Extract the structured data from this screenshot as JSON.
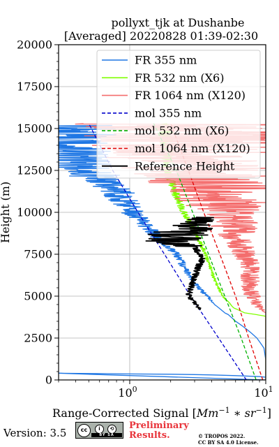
{
  "chart_data": {
    "type": "line",
    "title": "pollyxt_tjk at Dushanbe",
    "subtitle": "[Averaged] 20220828 01:39-02:30",
    "xlabel_prefix": "Range-Corrected Signal [",
    "xlabel_math": "Mm",
    "xlabel_sup1": "−1",
    "xlabel_mid": " ∗ ",
    "xlabel_math2": "sr",
    "xlabel_sup2": "−1",
    "xlabel_suffix": "]",
    "ylabel": "Height (m)",
    "xscale": "log",
    "xlim": [
      0.3,
      10
    ],
    "ylim": [
      0,
      20000
    ],
    "xticks": [
      {
        "value": 1,
        "base": "10",
        "exp": "0"
      },
      {
        "value": 10,
        "base": "10",
        "exp": "1"
      }
    ],
    "yticks": [
      0,
      2500,
      5000,
      7500,
      10000,
      12500,
      15000,
      17500,
      20000
    ],
    "grid": true,
    "legend_position": "top-right",
    "series": [
      {
        "name": "FR 355 nm",
        "color": "#1f77e4",
        "style": "solid",
        "points": [
          [
            12,
            100
          ],
          [
            9,
            200
          ],
          [
            6,
            260
          ],
          [
            4,
            300
          ],
          [
            3,
            320
          ],
          [
            2,
            340
          ],
          [
            1,
            360
          ],
          [
            0.6,
            380
          ],
          [
            0.3,
            400
          ]
        ],
        "profile": [
          [
            0,
            10,
            1
          ],
          [
            1200,
            10,
            1
          ],
          [
            1900,
            9.7,
            1
          ],
          [
            2500,
            8.6,
            1
          ],
          [
            3000,
            7.3,
            1
          ],
          [
            3500,
            6.0,
            1
          ],
          [
            3900,
            5.3,
            1
          ],
          [
            4000,
            5.0,
            1
          ],
          [
            4500,
            4.2,
            1
          ],
          [
            5000,
            3.7,
            1.04
          ],
          [
            5500,
            3.2,
            1.05
          ],
          [
            6000,
            2.9,
            1.05
          ],
          [
            6500,
            2.6,
            1.06
          ],
          [
            7000,
            2.4,
            1.07
          ],
          [
            7500,
            2.2,
            1.07
          ],
          [
            8000,
            1.9,
            1.09
          ],
          [
            8500,
            1.6,
            1.12
          ],
          [
            9000,
            1.4,
            1.15
          ],
          [
            9500,
            1.2,
            1.18
          ],
          [
            10000,
            1.05,
            1.22
          ],
          [
            10500,
            0.95,
            1.27
          ],
          [
            11000,
            0.85,
            1.32
          ],
          [
            11500,
            0.75,
            1.38
          ],
          [
            12000,
            0.6,
            1.48
          ],
          [
            12500,
            0.45,
            1.7
          ],
          [
            13000,
            0.38,
            1.9
          ],
          [
            13500,
            0.35,
            2.1
          ],
          [
            14000,
            0.33,
            2.3
          ],
          [
            14500,
            0.32,
            2.6
          ],
          [
            15200,
            0.3,
            3
          ]
        ]
      },
      {
        "name": "FR 532 nm (X6)",
        "color": "#7fff00",
        "style": "solid",
        "profile": [
          [
            0,
            10,
            1
          ],
          [
            3800,
            10,
            1
          ],
          [
            4000,
            7.0,
            1
          ],
          [
            4300,
            5.8,
            1
          ],
          [
            5000,
            4.8,
            1.02
          ],
          [
            6000,
            4.2,
            1.03
          ],
          [
            7000,
            3.8,
            1.03
          ],
          [
            8000,
            3.4,
            1.04
          ],
          [
            9000,
            2.9,
            1.05
          ],
          [
            10000,
            2.5,
            1.06
          ],
          [
            11000,
            2.2,
            1.07
          ],
          [
            12000,
            2.0,
            1.08
          ],
          [
            13000,
            1.9,
            1.1
          ],
          [
            14000,
            1.85,
            1.12
          ],
          [
            15000,
            1.8,
            1.15
          ],
          [
            15300,
            1.75,
            1.2
          ]
        ]
      },
      {
        "name": "FR 1064 nm (X120)",
        "color": "#f46d6d",
        "style": "solid",
        "profile": [
          [
            0,
            10,
            1
          ],
          [
            4000,
            10,
            1
          ],
          [
            4500,
            8.5,
            1.1
          ],
          [
            5000,
            8.0,
            1.15
          ],
          [
            5500,
            7.5,
            1.15
          ],
          [
            6000,
            7.8,
            1.18
          ],
          [
            7000,
            7.5,
            1.2
          ],
          [
            8000,
            6.5,
            1.25
          ],
          [
            9000,
            6.0,
            1.45
          ],
          [
            10000,
            5.5,
            1.8
          ],
          [
            11000,
            4.5,
            2.3
          ],
          [
            12000,
            3.5,
            3
          ],
          [
            13000,
            3.0,
            4
          ],
          [
            14000,
            2.8,
            6
          ],
          [
            15300,
            3.0,
            8
          ]
        ]
      },
      {
        "name": "mol 355 nm",
        "color": "#0000cc",
        "style": "dashed",
        "points": [
          [
            7.2,
            0
          ],
          [
            4.5,
            2500
          ],
          [
            2.8,
            5000
          ],
          [
            1.8,
            7500
          ],
          [
            1.15,
            10000
          ],
          [
            0.75,
            12500
          ],
          [
            0.5,
            15300
          ]
        ]
      },
      {
        "name": "mol 532 nm (X6)",
        "color": "#00b000",
        "style": "dashed",
        "points": [
          [
            8.5,
            0
          ],
          [
            6.6,
            2500
          ],
          [
            5.0,
            5000
          ],
          [
            3.8,
            7500
          ],
          [
            2.9,
            10000
          ],
          [
            2.2,
            12500
          ],
          [
            1.5,
            15300
          ]
        ]
      },
      {
        "name": "mol 1064 nm (X120)",
        "color": "#e00000",
        "style": "dashed",
        "points": [
          [
            9.5,
            0
          ],
          [
            7.5,
            2500
          ],
          [
            6.0,
            5000
          ],
          [
            4.6,
            7500
          ],
          [
            3.5,
            10000
          ],
          [
            2.7,
            12500
          ],
          [
            2.0,
            15300
          ]
        ]
      },
      {
        "name": "Reference Height",
        "color": "#000000",
        "style": "solid",
        "profile": [
          [
            4200,
            3.3,
            1.03
          ],
          [
            5000,
            2.7,
            1.05
          ],
          [
            5800,
            2.9,
            1.05
          ],
          [
            6500,
            3.1,
            1.06
          ],
          [
            7200,
            3.4,
            1.06
          ],
          [
            7800,
            3.1,
            1.06
          ],
          [
            8300,
            2.0,
            1.6
          ],
          [
            8800,
            2.3,
            1.8
          ],
          [
            9300,
            3.0,
            1.35
          ],
          [
            9700,
            3.5,
            1.2
          ]
        ]
      }
    ]
  },
  "footer": {
    "version": "Version: 3.5",
    "preliminary_line1": "Preliminary",
    "preliminary_line2": "Results.",
    "copyright_line1": "© TROPOS 2022.",
    "copyright_line2": "CC BY SA 4.0 License.",
    "cc_badge": {
      "icon": "cc-by-sa-badge",
      "label": "BY SA"
    }
  }
}
